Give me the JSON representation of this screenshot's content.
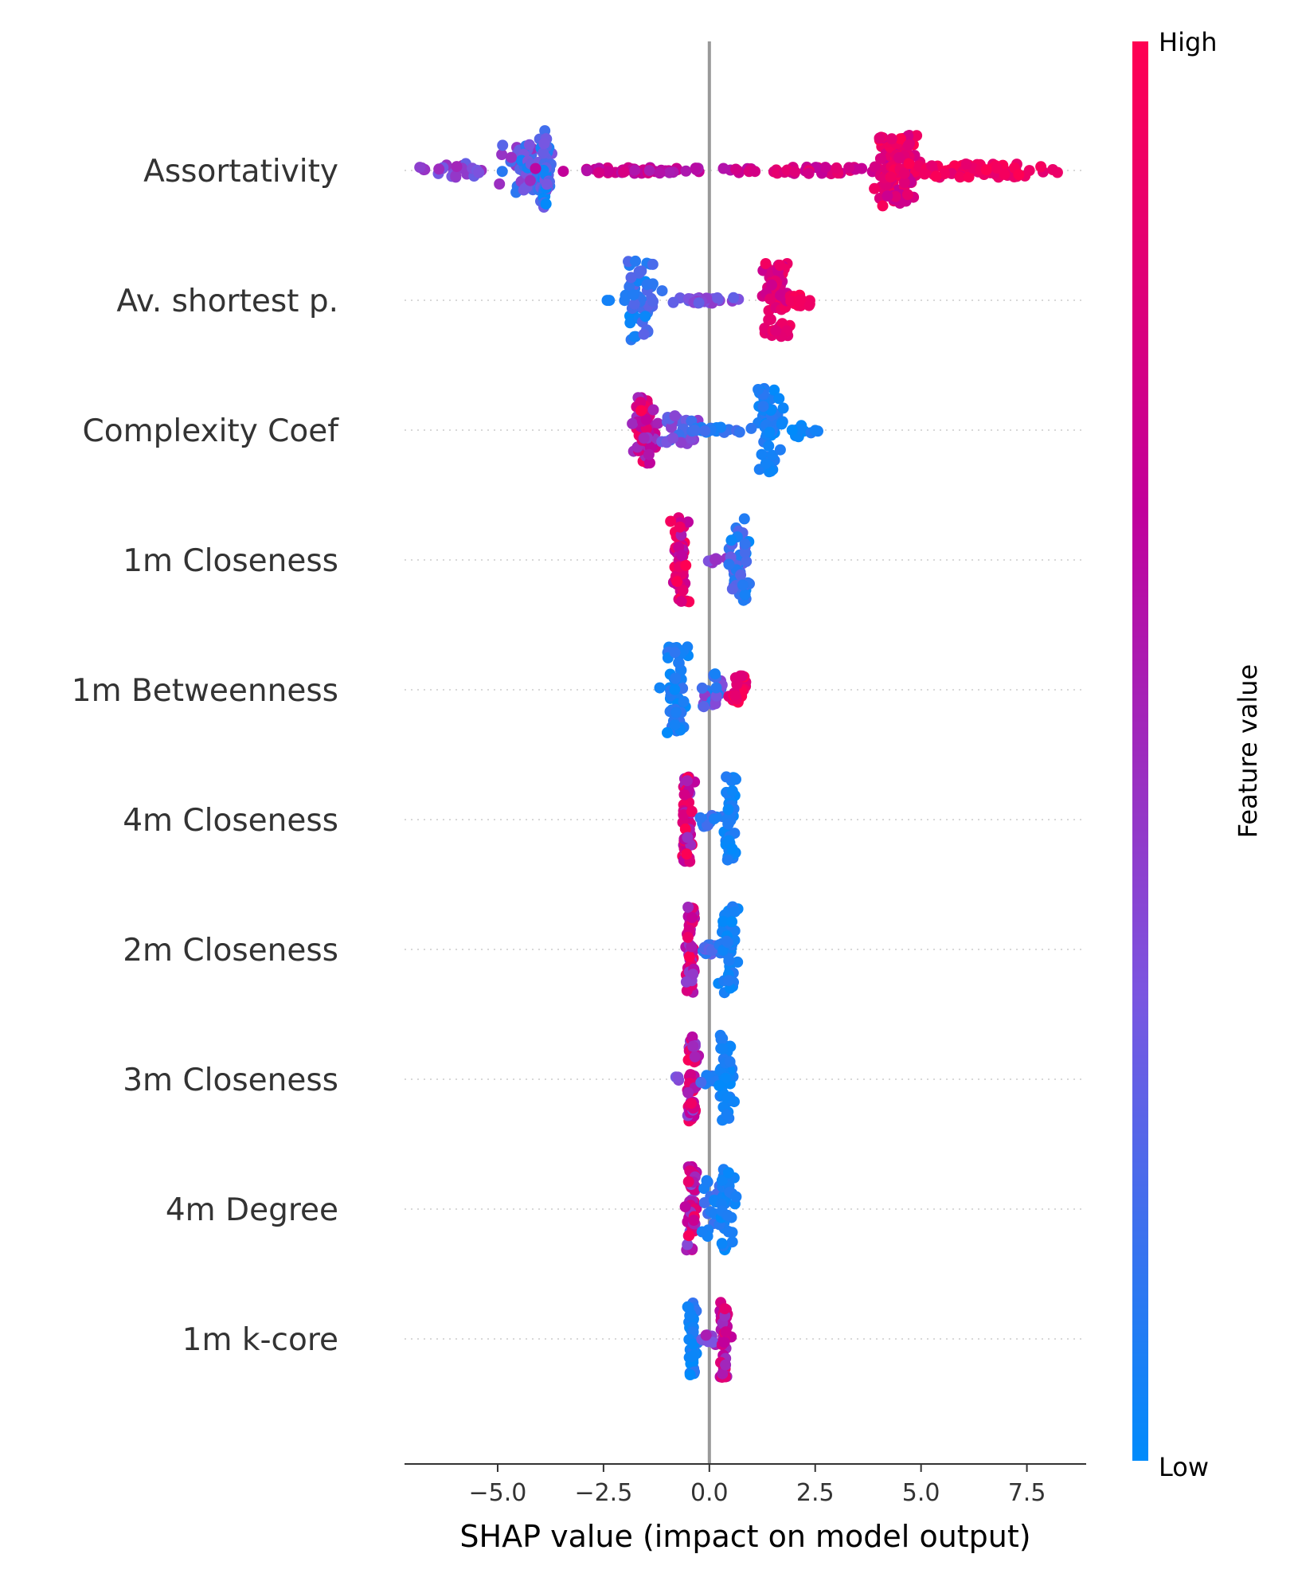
{
  "chart_data": {
    "type": "scatter",
    "subtype": "shap-beeswarm",
    "xlabel": "SHAP value (impact on model output)",
    "xlim": [
      -7.2,
      8.9
    ],
    "x_ticks": [
      -5.0,
      -2.5,
      0.0,
      2.5,
      5.0,
      7.5
    ],
    "x_tick_labels": [
      "−5.0",
      "−2.5",
      "0.0",
      "2.5",
      "5.0",
      "7.5"
    ],
    "zero_line": 0,
    "grid": false,
    "colorbar": {
      "label": "Feature value",
      "high_label": "High",
      "low_label": "Low",
      "colors": [
        "#008bfb",
        "#7b55e0",
        "#c1009b",
        "#ff0052"
      ]
    },
    "features": [
      {
        "name": "Assortativity",
        "clusters": [
          {
            "x": -6.8,
            "spread": 0.15,
            "n": 4,
            "height": 0.06,
            "color_low": 0.4,
            "color_high": 0.55
          },
          {
            "x": -6.0,
            "spread": 0.6,
            "n": 22,
            "height": 0.12,
            "color_low": 0.25,
            "color_high": 0.55
          },
          {
            "x": -4.3,
            "spread": 0.5,
            "n": 60,
            "height": 0.45,
            "color_low": 0.05,
            "color_high": 0.5
          },
          {
            "x": -3.9,
            "spread": 0.12,
            "n": 45,
            "height": 0.7,
            "color_low": 0.0,
            "color_high": 0.35
          },
          {
            "x": -1.5,
            "spread": 2.0,
            "n": 55,
            "height": 0.05,
            "color_low": 0.55,
            "color_high": 0.8
          },
          {
            "x": 2.5,
            "spread": 1.6,
            "n": 45,
            "height": 0.06,
            "color_low": 0.65,
            "color_high": 0.9
          },
          {
            "x": 4.4,
            "spread": 0.5,
            "n": 90,
            "height": 0.62,
            "color_low": 0.7,
            "color_high": 1.0
          },
          {
            "x": 6.3,
            "spread": 1.6,
            "n": 70,
            "height": 0.12,
            "color_low": 0.85,
            "color_high": 1.0
          }
        ]
      },
      {
        "name": "Av. shortest p.",
        "clusters": [
          {
            "x": -2.4,
            "spread": 0.05,
            "n": 2,
            "height": 0.02,
            "color_low": 0.05,
            "color_high": 0.1
          },
          {
            "x": -1.6,
            "spread": 0.4,
            "n": 55,
            "height": 0.7,
            "color_low": 0.0,
            "color_high": 0.25
          },
          {
            "x": -0.2,
            "spread": 0.8,
            "n": 30,
            "height": 0.05,
            "color_low": 0.25,
            "color_high": 0.45
          },
          {
            "x": 1.6,
            "spread": 0.3,
            "n": 65,
            "height": 0.65,
            "color_low": 0.7,
            "color_high": 0.95
          },
          {
            "x": 2.2,
            "spread": 0.3,
            "n": 18,
            "height": 0.1,
            "color_low": 0.9,
            "color_high": 1.0
          }
        ]
      },
      {
        "name": "Complexity Coef",
        "clusters": [
          {
            "x": -1.5,
            "spread": 0.25,
            "n": 55,
            "height": 0.6,
            "color_low": 0.45,
            "color_high": 1.0
          },
          {
            "x": -0.7,
            "spread": 0.4,
            "n": 30,
            "height": 0.25,
            "color_low": 0.15,
            "color_high": 0.45
          },
          {
            "x": 0.2,
            "spread": 0.7,
            "n": 22,
            "height": 0.05,
            "color_low": 0.05,
            "color_high": 0.2
          },
          {
            "x": 1.4,
            "spread": 0.3,
            "n": 60,
            "height": 0.75,
            "color_low": 0.0,
            "color_high": 0.12
          },
          {
            "x": 2.2,
            "spread": 0.4,
            "n": 14,
            "height": 0.12,
            "color_low": 0.0,
            "color_high": 0.1
          }
        ]
      },
      {
        "name": "1m Closeness",
        "clusters": [
          {
            "x": -0.7,
            "spread": 0.2,
            "n": 55,
            "height": 0.75,
            "color_low": 0.55,
            "color_high": 1.0
          },
          {
            "x": 0.2,
            "spread": 0.3,
            "n": 10,
            "height": 0.05,
            "color_low": 0.35,
            "color_high": 0.5
          },
          {
            "x": 0.7,
            "spread": 0.25,
            "n": 45,
            "height": 0.72,
            "color_low": 0.0,
            "color_high": 0.3
          }
        ]
      },
      {
        "name": "1m Betweenness",
        "clusters": [
          {
            "x": -0.8,
            "spread": 0.3,
            "n": 55,
            "height": 0.75,
            "color_low": 0.0,
            "color_high": 0.15
          },
          {
            "x": 0.1,
            "spread": 0.35,
            "n": 30,
            "height": 0.3,
            "color_low": 0.0,
            "color_high": 0.45
          },
          {
            "x": 0.7,
            "spread": 0.2,
            "n": 25,
            "height": 0.25,
            "color_low": 0.8,
            "color_high": 1.0
          }
        ]
      },
      {
        "name": "4m Closeness",
        "clusters": [
          {
            "x": -0.5,
            "spread": 0.12,
            "n": 50,
            "height": 0.75,
            "color_low": 0.4,
            "color_high": 1.0
          },
          {
            "x": 0.0,
            "spread": 0.25,
            "n": 14,
            "height": 0.12,
            "color_low": 0.05,
            "color_high": 0.2
          },
          {
            "x": 0.5,
            "spread": 0.15,
            "n": 45,
            "height": 0.75,
            "color_low": 0.0,
            "color_high": 0.1
          }
        ]
      },
      {
        "name": "2m Closeness",
        "clusters": [
          {
            "x": -0.45,
            "spread": 0.12,
            "n": 50,
            "height": 0.75,
            "color_low": 0.4,
            "color_high": 1.0
          },
          {
            "x": 0.05,
            "spread": 0.25,
            "n": 14,
            "height": 0.08,
            "color_low": 0.1,
            "color_high": 0.3
          },
          {
            "x": 0.45,
            "spread": 0.2,
            "n": 45,
            "height": 0.78,
            "color_low": 0.0,
            "color_high": 0.1
          }
        ]
      },
      {
        "name": "3m Closeness",
        "clusters": [
          {
            "x": -0.75,
            "spread": 0.05,
            "n": 3,
            "height": 0.05,
            "color_low": 0.3,
            "color_high": 0.45
          },
          {
            "x": -0.4,
            "spread": 0.12,
            "n": 50,
            "height": 0.75,
            "color_low": 0.4,
            "color_high": 1.0
          },
          {
            "x": 0.05,
            "spread": 0.25,
            "n": 14,
            "height": 0.08,
            "color_low": 0.05,
            "color_high": 0.2
          },
          {
            "x": 0.4,
            "spread": 0.2,
            "n": 45,
            "height": 0.78,
            "color_low": 0.0,
            "color_high": 0.1
          }
        ]
      },
      {
        "name": "4m Degree",
        "clusters": [
          {
            "x": -0.4,
            "spread": 0.12,
            "n": 50,
            "height": 0.75,
            "color_low": 0.35,
            "color_high": 1.0
          },
          {
            "x": 0.0,
            "spread": 0.2,
            "n": 20,
            "height": 0.5,
            "color_low": 0.0,
            "color_high": 0.2
          },
          {
            "x": 0.4,
            "spread": 0.2,
            "n": 40,
            "height": 0.72,
            "color_low": 0.0,
            "color_high": 0.1
          }
        ]
      },
      {
        "name": "1m k-core",
        "clusters": [
          {
            "x": -0.4,
            "spread": 0.1,
            "n": 45,
            "height": 0.65,
            "color_low": 0.0,
            "color_high": 0.15
          },
          {
            "x": 0.0,
            "spread": 0.2,
            "n": 10,
            "height": 0.1,
            "color_low": 0.3,
            "color_high": 0.6
          },
          {
            "x": 0.35,
            "spread": 0.12,
            "n": 45,
            "height": 0.7,
            "color_low": 0.45,
            "color_high": 0.9
          }
        ]
      }
    ]
  }
}
